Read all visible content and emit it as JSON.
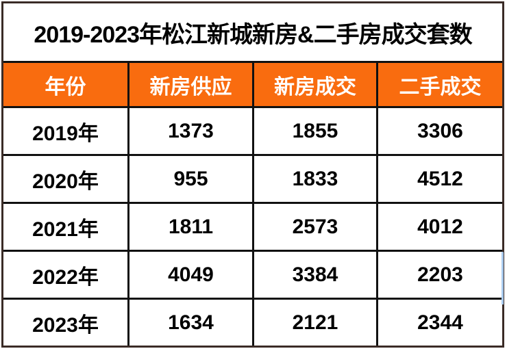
{
  "title": "2019-2023年松江新城新房&二手房成交套数",
  "colors": {
    "header_bg": "#F96C0F",
    "header_text": "#FFFFFF",
    "grid_line": "#111111",
    "frame_border": "#3A2B26",
    "body_text": "#000000",
    "selection_artifact": "#A9CBEE"
  },
  "chart_data": {
    "type": "table",
    "title": "2019-2023年松江新城新房&二手房成交套数",
    "columns": [
      "年份",
      "新房供应",
      "新房成交",
      "二手成交"
    ],
    "rows": [
      [
        "2019年",
        "1373",
        "1855",
        "3306"
      ],
      [
        "2020年",
        "955",
        "1833",
        "4512"
      ],
      [
        "2021年",
        "1811",
        "2573",
        "4012"
      ],
      [
        "2022年",
        "4049",
        "3384",
        "2203"
      ],
      [
        "2023年",
        "1634",
        "2121",
        "2344"
      ]
    ]
  }
}
